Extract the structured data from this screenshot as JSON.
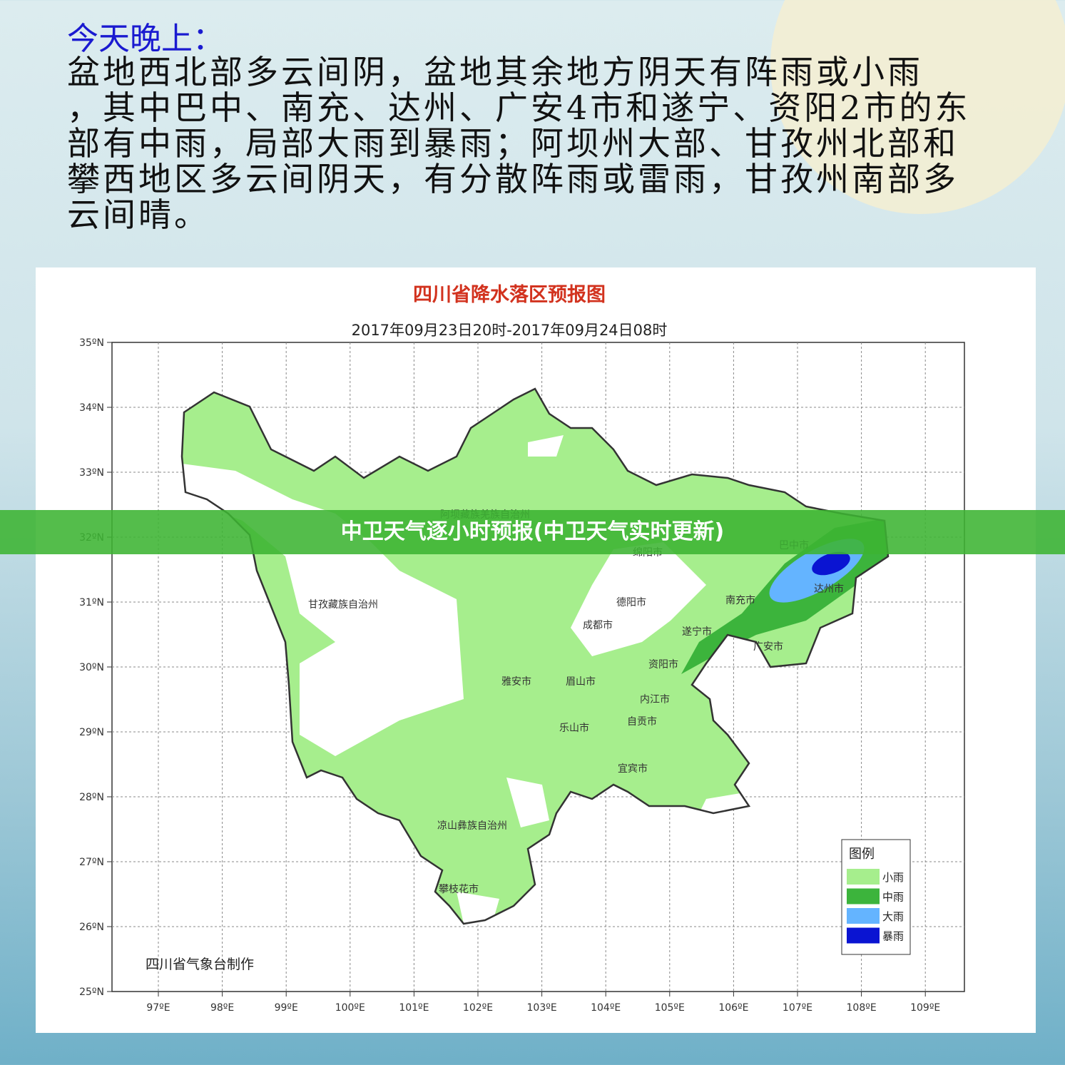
{
  "header": {
    "title": "今天晚上：",
    "lines": [
      "盆地西北部多云间阴，盆地其余地方阴天有阵雨或小雨",
      "，其中巴中、南充、达州、广安4市和遂宁、资阳2市的东",
      "部有中雨，局部大雨到暴雨；阿坝州大部、甘孜州北部和",
      "攀西地区多云间阴天，有分散阵雨或雷雨，甘孜州南部多",
      "云间晴。"
    ]
  },
  "map": {
    "title": "四川省降水落区预报图",
    "subtitle": "2017年09月23日20时-2017年09月24日08时",
    "yticks": [
      "35ºN",
      "34ºN",
      "33ºN",
      "32ºN",
      "31ºN",
      "30ºN",
      "29ºN",
      "28ºN",
      "27ºN",
      "26ºN",
      "25ºN"
    ],
    "xticks": [
      "97ºE",
      "98ºE",
      "99ºE",
      "100ºE",
      "101ºE",
      "102ºE",
      "103ºE",
      "104ºE",
      "105ºE",
      "106ºE",
      "107ºE",
      "108ºE",
      "109ºE"
    ],
    "places": [
      "阿坝藏族羌族自治州",
      "绵阳市",
      "巴中市",
      "甘孜藏族自治州",
      "德阳市",
      "南充市",
      "达州市",
      "成都市",
      "遂宁市",
      "广安市",
      "资阳市",
      "雅安市",
      "眉山市",
      "内江市",
      "自贡市",
      "乐山市",
      "宜宾市",
      "凉山彝族自治州",
      "攀枝花市"
    ],
    "legend": {
      "title": "图例",
      "items": [
        "小雨",
        "中雨",
        "大雨",
        "暴雨"
      ]
    },
    "credit": "四川省气象台制作"
  },
  "banner": {
    "text": "中卫天气逐小时预报(中卫天气实时更新)"
  }
}
